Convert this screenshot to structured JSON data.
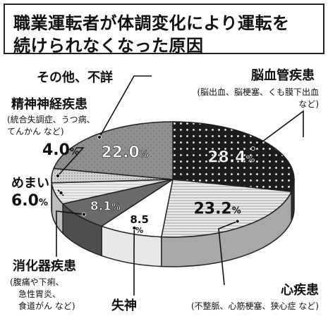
{
  "title": {
    "line1": "職業運転者が体調変化により運転を",
    "line2": "続けられなくなった原因"
  },
  "chart_data": {
    "type": "pie",
    "title": "職業運転者が体調変化により運転を続けられなくなった原因",
    "unit": "%",
    "slices": [
      {
        "name": "脳血管疾患",
        "detail": [
          "(脳出血、脳梗塞、くも膜下出血",
          "など)"
        ],
        "value": 28.4,
        "label": "28.4"
      },
      {
        "name": "心疾患",
        "detail": [
          "(不整脈、心筋梗塞、狭心症 など)"
        ],
        "value": 23.2,
        "label": "23.2"
      },
      {
        "name": "失神",
        "detail": [],
        "value": 8.5,
        "label": "8.5"
      },
      {
        "name": "消化器疾患",
        "detail": [
          "(腹痛や下痢、",
          "急性胃炎、",
          "食道がん など)"
        ],
        "value": 8.1,
        "label": "8.1"
      },
      {
        "name": "めまい",
        "detail": [],
        "value": 6.0,
        "label": "6.0"
      },
      {
        "name": "精神神経疾患",
        "detail": [
          "(統合失調症、うつ病、",
          "てんかん など)"
        ],
        "value": 4.0,
        "label": "4.0"
      },
      {
        "name": "その他、不詳",
        "detail": [],
        "value": 22.0,
        "label": "22.0"
      }
    ],
    "colors": {
      "brain": "#1c1c1c",
      "heart": "#d8d8d8",
      "syncope": "#ffffff",
      "digestive": "#6a6a6a",
      "dizziness": "#e6e6e6",
      "psych": "#b4b4b4",
      "other": "#8c8c8c"
    }
  }
}
